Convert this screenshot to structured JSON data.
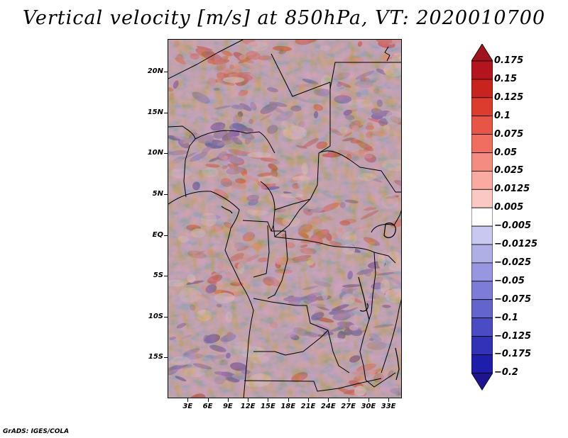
{
  "title": "Vertical velocity [m/s] at 850hPa, VT: 2020010700",
  "footer": "GrADS: IGES/COLA",
  "map": {
    "lon_range": [
      0,
      35
    ],
    "lat_range": [
      -20,
      24
    ],
    "lat_labels": [
      {
        "lat": 20,
        "label": "20N"
      },
      {
        "lat": 15,
        "label": "15N"
      },
      {
        "lat": 10,
        "label": "10N"
      },
      {
        "lat": 5,
        "label": "5N"
      },
      {
        "lat": 0,
        "label": "EQ"
      },
      {
        "lat": -5,
        "label": "5S"
      },
      {
        "lat": -10,
        "label": "10S"
      },
      {
        "lat": -15,
        "label": "15S"
      }
    ],
    "lon_labels": [
      {
        "lon": 3,
        "label": "3E"
      },
      {
        "lon": 6,
        "label": "6E"
      },
      {
        "lon": 9,
        "label": "9E"
      },
      {
        "lon": 12,
        "label": "12E"
      },
      {
        "lon": 15,
        "label": "15E"
      },
      {
        "lon": 18,
        "label": "18E"
      },
      {
        "lon": 21,
        "label": "21E"
      },
      {
        "lon": 24,
        "label": "24E"
      },
      {
        "lon": 27,
        "label": "27E"
      },
      {
        "lon": 30,
        "label": "30E"
      },
      {
        "lon": 33,
        "label": "33E"
      }
    ]
  },
  "colorbar": {
    "labels": [
      "0.175",
      "0.15",
      "0.125",
      "0.1",
      "0.075",
      "0.05",
      "0.025",
      "0.0125",
      "0.005",
      "−0.005",
      "−0.0125",
      "−0.025",
      "−0.05",
      "−0.075",
      "−0.1",
      "−0.125",
      "−0.175",
      "−0.2"
    ],
    "colors": [
      "#a0141e",
      "#b4141e",
      "#c8231e",
      "#dc3c2d",
      "#e65546",
      "#f06e5f",
      "#f58c82",
      "#faaaa0",
      "#fcc8c3",
      "#ffffff",
      "#c8c8f0",
      "#afafe6",
      "#9696e1",
      "#7d7dd7",
      "#6464cd",
      "#4b4bc3",
      "#3232b9",
      "#1e1eaa",
      "#1e1491"
    ]
  }
}
